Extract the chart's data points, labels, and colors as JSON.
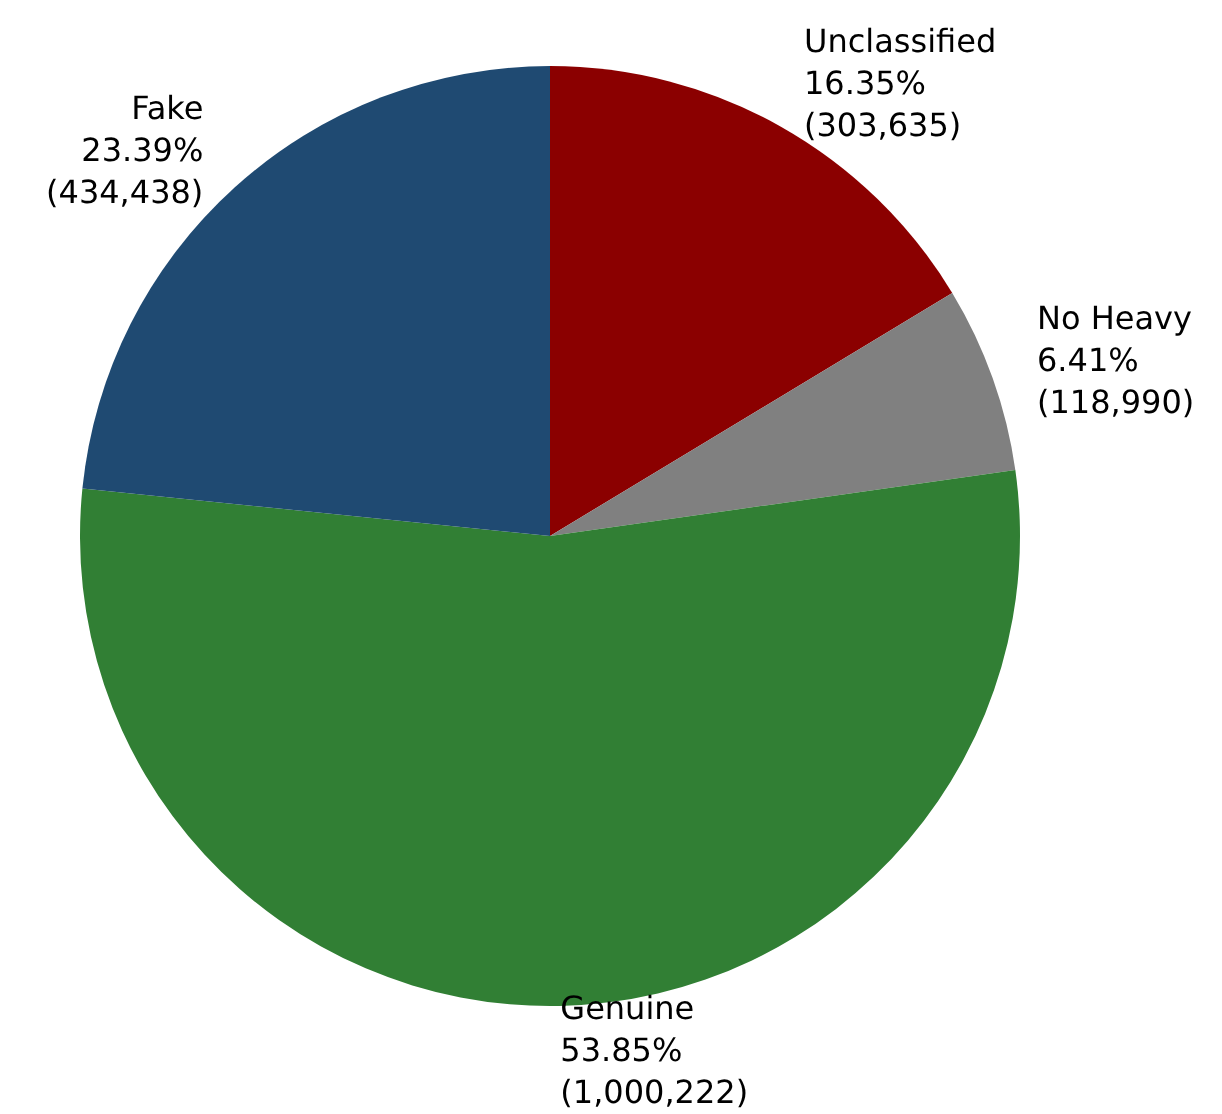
{
  "chart_data": {
    "type": "pie",
    "categories": [
      "Unclassified",
      "No Heavy",
      "Genuine",
      "Fake"
    ],
    "values": [
      303635,
      118990,
      1000222,
      434438
    ],
    "colors": [
      "#8b0000",
      "#808080",
      "#317f34",
      "#1f4a72"
    ],
    "value_labels": [
      "16.35%\n(303,635)",
      "6.41%\n(118,990)",
      "53.85%\n(1,000,222)",
      "23.39%\n(434,438)"
    ]
  }
}
